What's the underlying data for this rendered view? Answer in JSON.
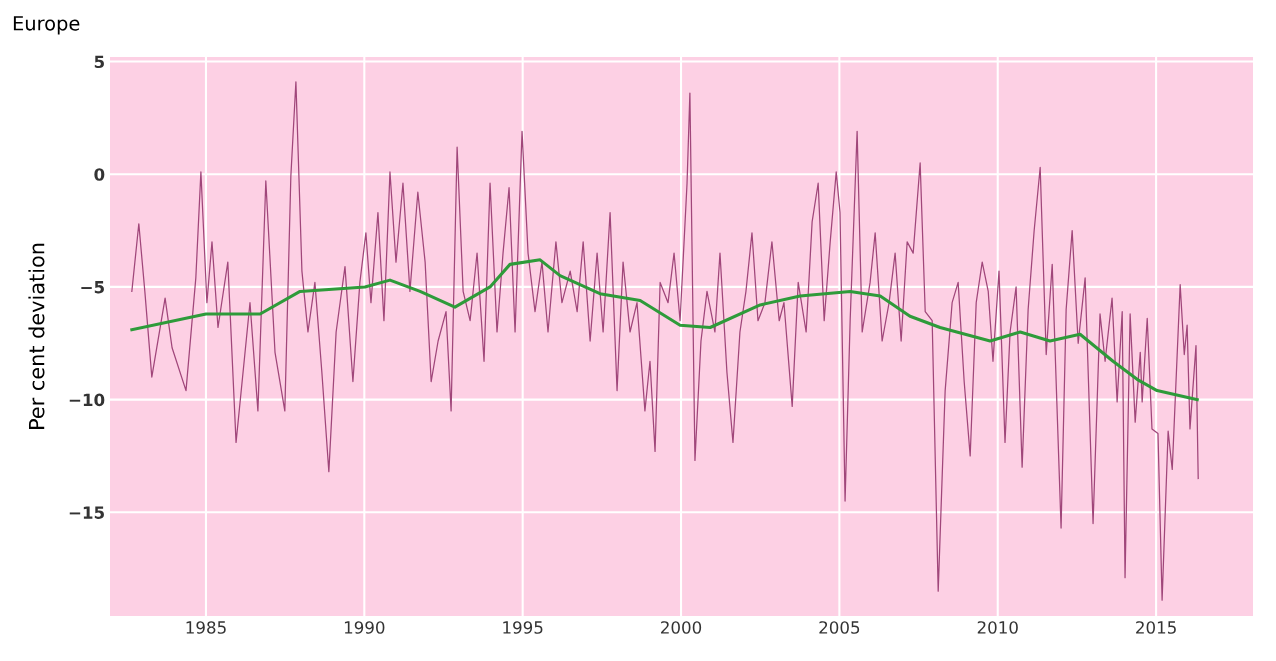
{
  "chart_data": {
    "type": "line",
    "title": "Europe",
    "ylabel": "Per cent deviation",
    "xlim": [
      1981.97,
      2018.06
    ],
    "ylim": [
      -19.6,
      5.2
    ],
    "xticks": [
      1985,
      1990,
      1995,
      2000,
      2005,
      2010,
      2015
    ],
    "yticks": [
      {
        "value": 5,
        "label": "5"
      },
      {
        "value": 0,
        "label": "0"
      },
      {
        "value": -5,
        "label": "−5"
      },
      {
        "value": -10,
        "label": "−10"
      },
      {
        "value": -15,
        "label": "−15"
      }
    ],
    "grid": true,
    "series": [
      {
        "color": "#a0467a",
        "x": [
          1982.66,
          1982.88,
          1983.07,
          1983.29,
          1983.71,
          1983.93,
          1984.37,
          1984.68,
          1984.84,
          1985.03,
          1985.19,
          1985.38,
          1985.69,
          1985.95,
          1986.39,
          1986.64,
          1986.89,
          1987.18,
          1987.49,
          1987.68,
          1987.84,
          1988.03,
          1988.22,
          1988.44,
          1988.66,
          1988.88,
          1989.11,
          1989.39,
          1989.64,
          1989.86,
          1990.05,
          1990.21,
          1990.43,
          1990.62,
          1990.81,
          1991.0,
          1991.22,
          1991.44,
          1991.69,
          1991.92,
          1992.11,
          1992.33,
          1992.58,
          1992.74,
          1992.93,
          1993.12,
          1993.34,
          1993.56,
          1993.78,
          1993.97,
          1994.19,
          1994.38,
          1994.57,
          1994.76,
          1994.98,
          1995.17,
          1995.39,
          1995.61,
          1995.8,
          1996.05,
          1996.24,
          1996.5,
          1996.72,
          1996.91,
          1997.13,
          1997.35,
          1997.54,
          1997.76,
          1997.98,
          1998.17,
          1998.39,
          1998.61,
          1998.86,
          1999.02,
          1999.18,
          1999.34,
          1999.59,
          1999.78,
          1999.97,
          2000.19,
          2000.28,
          2000.44,
          2000.63,
          2000.82,
          2001.07,
          2001.23,
          2001.45,
          2001.64,
          2001.86,
          2002.05,
          2002.24,
          2002.43,
          2002.65,
          2002.87,
          2003.1,
          2003.25,
          2003.51,
          2003.7,
          2003.95,
          2004.14,
          2004.33,
          2004.52,
          2004.71,
          2004.9,
          2005.02,
          2005.18,
          2005.34,
          2005.56,
          2005.72,
          2005.97,
          2006.13,
          2006.35,
          2006.57,
          2006.76,
          2006.95,
          2007.14,
          2007.33,
          2007.55,
          2007.71,
          2007.93,
          2008.12,
          2008.34,
          2008.56,
          2008.75,
          2008.94,
          2009.13,
          2009.32,
          2009.51,
          2009.7,
          2009.85,
          2010.04,
          2010.23,
          2010.39,
          2010.58,
          2010.77,
          2010.96,
          2011.15,
          2011.34,
          2011.53,
          2011.72,
          2012.0,
          2012.16,
          2012.35,
          2012.54,
          2012.76,
          2013.01,
          2013.23,
          2013.39,
          2013.61,
          2013.77,
          2013.93,
          2014.02,
          2014.18,
          2014.34,
          2014.5,
          2014.56,
          2014.72,
          2014.87,
          2015.06,
          2015.19,
          2015.38,
          2015.51,
          2015.76,
          2015.89,
          2015.98,
          2016.07,
          2016.26,
          2016.33
        ],
        "values": [
          -5.2,
          -2.2,
          -5.2,
          -9.0,
          -5.5,
          -7.7,
          -9.6,
          -4.6,
          0.1,
          -5.7,
          -3.0,
          -6.8,
          -3.9,
          -11.9,
          -5.7,
          -10.5,
          -0.3,
          -7.9,
          -10.5,
          -0.1,
          4.1,
          -4.3,
          -7.0,
          -4.8,
          -8.8,
          -13.2,
          -7.0,
          -4.1,
          -9.2,
          -4.8,
          -2.6,
          -5.7,
          -1.7,
          -6.5,
          0.1,
          -3.9,
          -0.4,
          -5.2,
          -0.8,
          -3.9,
          -9.2,
          -7.4,
          -6.1,
          -10.5,
          1.2,
          -5.2,
          -6.5,
          -3.5,
          -8.3,
          -0.4,
          -7.0,
          -3.5,
          -0.6,
          -7.0,
          1.9,
          -3.5,
          -6.1,
          -3.9,
          -7.0,
          -3.0,
          -5.7,
          -4.3,
          -6.1,
          -3.0,
          -7.4,
          -3.5,
          -7.0,
          -1.7,
          -9.6,
          -3.9,
          -7.0,
          -5.7,
          -10.5,
          -8.3,
          -12.3,
          -4.8,
          -5.7,
          -3.5,
          -6.5,
          -0.4,
          3.6,
          -12.7,
          -7.4,
          -5.2,
          -7.0,
          -3.5,
          -8.8,
          -11.9,
          -7.0,
          -5.2,
          -2.6,
          -6.5,
          -5.7,
          -3.0,
          -6.5,
          -5.7,
          -10.3,
          -4.8,
          -7.0,
          -2.1,
          -0.4,
          -6.5,
          -3.0,
          0.1,
          -1.7,
          -14.5,
          -6.5,
          1.9,
          -7.0,
          -4.8,
          -2.6,
          -7.4,
          -5.7,
          -3.5,
          -7.4,
          -3.0,
          -3.5,
          0.5,
          -6.1,
          -6.5,
          -18.5,
          -9.6,
          -5.7,
          -4.8,
          -9.2,
          -12.5,
          -5.7,
          -3.9,
          -5.2,
          -8.3,
          -4.3,
          -11.9,
          -7.0,
          -5.0,
          -13.0,
          -6.0,
          -2.5,
          0.3,
          -8.0,
          -4.0,
          -15.7,
          -6.0,
          -2.5,
          -7.5,
          -4.6,
          -15.5,
          -6.2,
          -8.3,
          -5.5,
          -10.1,
          -6.1,
          -17.9,
          -6.2,
          -11.0,
          -7.9,
          -10.1,
          -6.4,
          -11.3,
          -11.5,
          -18.9,
          -11.4,
          -13.1,
          -4.9,
          -8.0,
          -6.7,
          -11.3,
          -7.6,
          -13.5
        ]
      },
      {
        "color": "#2e9b3a",
        "x": [
          1982.66,
          1985.0,
          1986.71,
          1987.97,
          1990.02,
          1990.81,
          1991.76,
          1992.86,
          1993.97,
          1994.6,
          1995.55,
          1996.18,
          1997.44,
          1998.71,
          1999.97,
          2000.92,
          2002.5,
          2003.76,
          2005.34,
          2006.29,
          2007.23,
          2008.18,
          2009.76,
          2010.71,
          2011.65,
          2012.6,
          2013.64,
          2014.4,
          2015.03,
          2016.3
        ],
        "values": [
          -6.9,
          -6.2,
          -6.2,
          -5.2,
          -5.0,
          -4.7,
          -5.2,
          -5.9,
          -5.0,
          -4.0,
          -3.8,
          -4.5,
          -5.3,
          -5.6,
          -6.7,
          -6.8,
          -5.8,
          -5.4,
          -5.2,
          -5.4,
          -6.3,
          -6.8,
          -7.4,
          -7.0,
          -7.4,
          -7.1,
          -8.3,
          -9.1,
          -9.6,
          -10.0
        ]
      }
    ]
  }
}
